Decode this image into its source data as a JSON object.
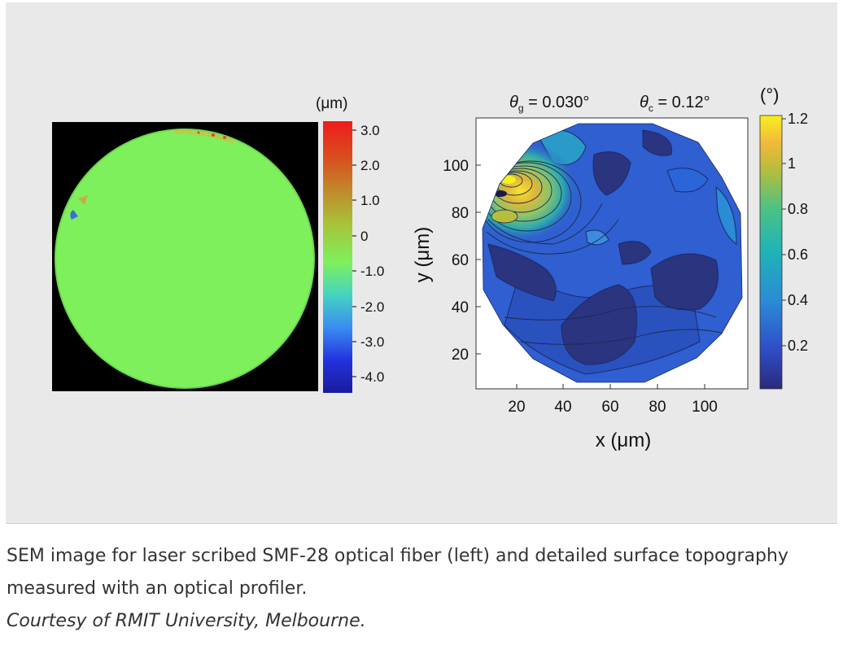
{
  "left_image": {
    "colorbar": {
      "unit_label": "(μm)",
      "ticks": [
        "3.0",
        "2.0",
        "1.0",
        "0",
        "-1.0",
        "-2.0",
        "-3.0",
        "-4.0"
      ]
    }
  },
  "right_plot": {
    "theta_g_symbol": "θ",
    "theta_g_sub": "g",
    "theta_g_value": " = 0.030°",
    "theta_c_symbol": "θ",
    "theta_c_sub": "c",
    "theta_c_value": " = 0.12°",
    "xlabel": "x (μm)",
    "ylabel": "y (μm)",
    "xticks": [
      "20",
      "40",
      "60",
      "80",
      "100"
    ],
    "yticks": [
      "100",
      "80",
      "60",
      "40",
      "20"
    ],
    "colorbar": {
      "unit_label": "(°)",
      "ticks": [
        "1.2",
        "1",
        "0.8",
        "0.6",
        "0.4",
        "0.2"
      ]
    }
  },
  "caption": {
    "text": "SEM image for laser scribed SMF-28 optical fiber (left) and detailed surface topography measured with an optical profiler.",
    "credit": "Courtesy of RMIT University, Melbourne."
  },
  "colors": {
    "panel_background": "#e9e9e9",
    "fiber_green": "#7ef05c",
    "contour_dark": "#2c3a8c",
    "contour_blue": "#2f5fd0",
    "hotspot_yellow": "#f4e23a"
  }
}
